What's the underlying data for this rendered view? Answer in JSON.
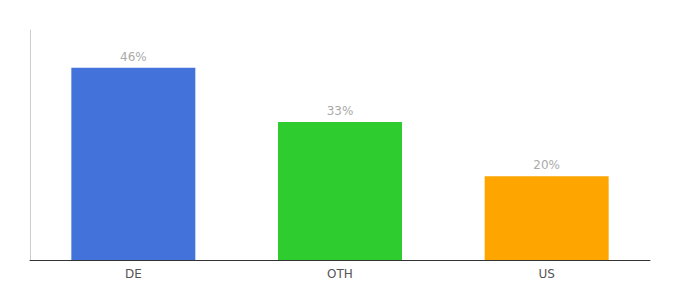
{
  "chart_data": {
    "type": "bar",
    "categories": [
      "DE",
      "OTH",
      "US"
    ],
    "values": [
      46,
      33,
      20
    ],
    "value_labels": [
      "46%",
      "33%",
      "20%"
    ],
    "data_labels": true,
    "colors": [
      "#4472db",
      "#2ecc2e",
      "#ffa500"
    ],
    "ylim": [
      0,
      55
    ],
    "grid": false,
    "tick_labels": "x"
  }
}
